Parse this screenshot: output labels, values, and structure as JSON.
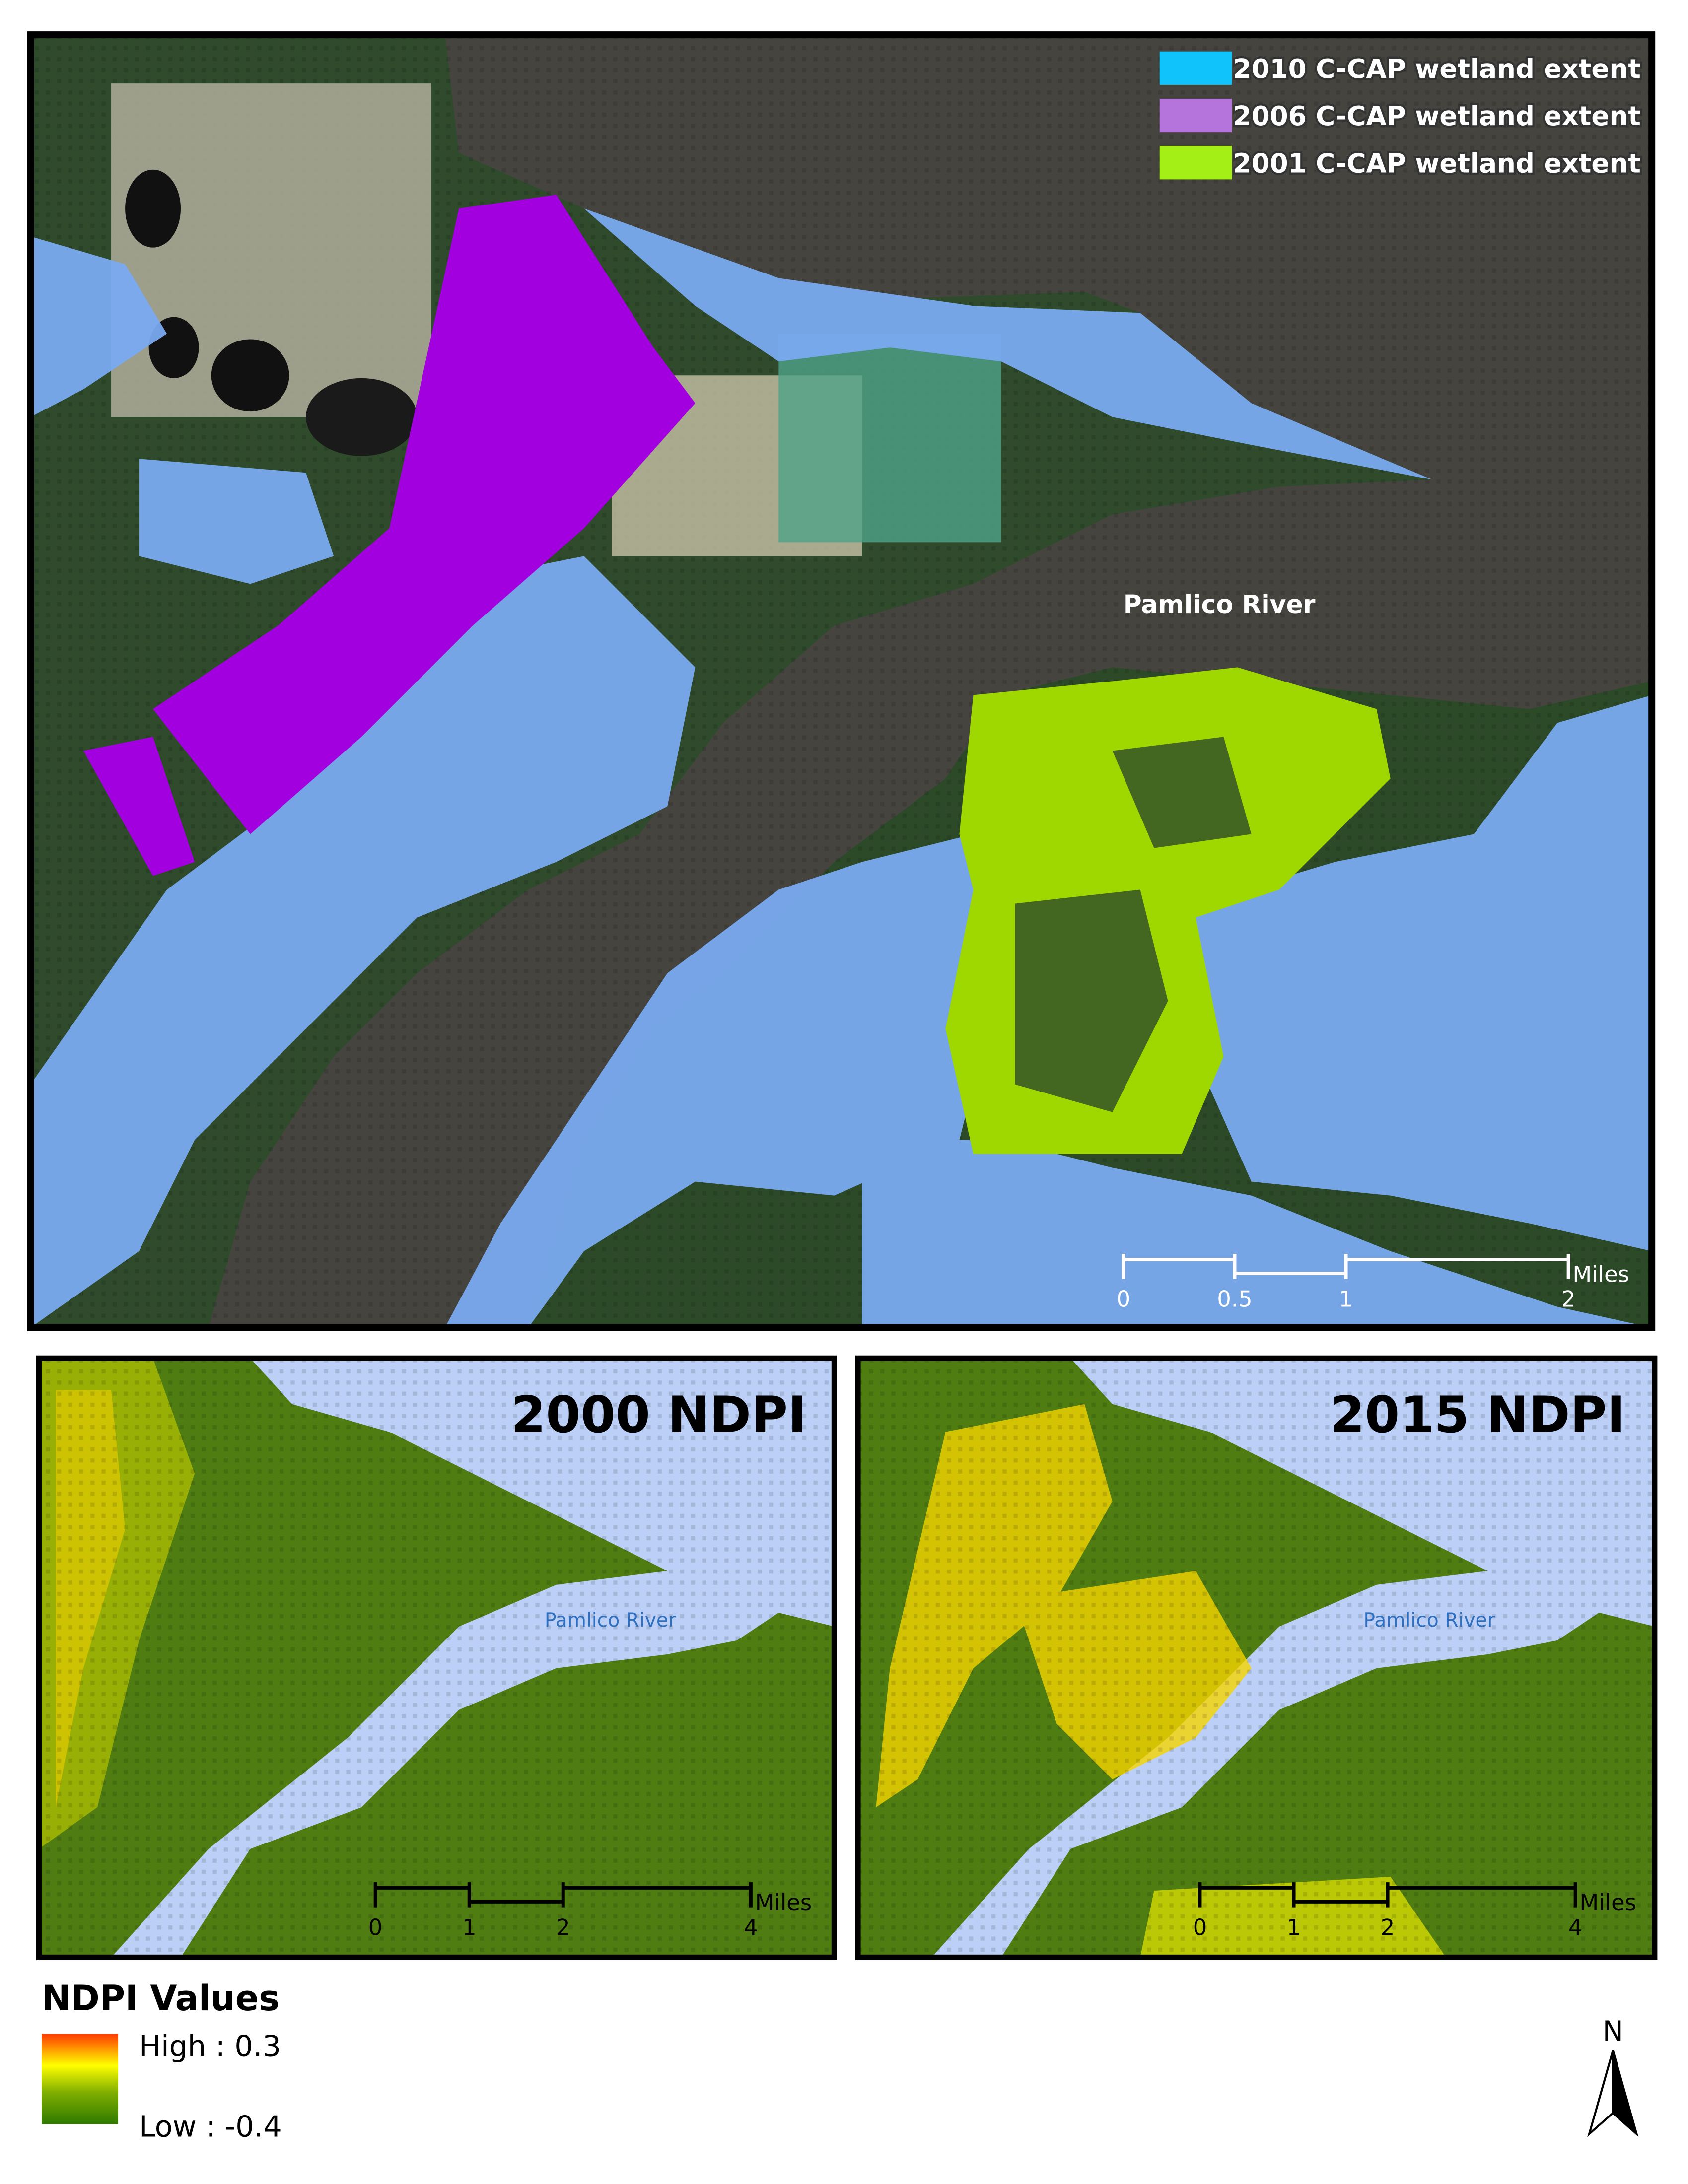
{
  "top_map": {
    "legend": [
      {
        "label": "2010 C-CAP wetland extent",
        "color": "#10c4fb"
      },
      {
        "label": "2006 C-CAP wetland extent",
        "color": "#b574dc"
      },
      {
        "label": "2001 C-CAP wetland extent",
        "color": "#a4f016"
      }
    ],
    "river_label": "Pamlico River",
    "scale_bar": {
      "ticks": [
        0,
        0.5,
        1,
        2
      ],
      "unit": "Miles"
    }
  },
  "panels": [
    {
      "title": "2000 NDPI",
      "river_label": "Pamlico River",
      "scale_bar": {
        "ticks": [
          0,
          1,
          2,
          4
        ],
        "unit": "Miles"
      }
    },
    {
      "title": "2015 NDPI",
      "river_label": "Pamlico River",
      "scale_bar": {
        "ticks": [
          0,
          1,
          2,
          4
        ],
        "unit": "Miles"
      }
    }
  ],
  "ndpi_legend": {
    "title": "NDPI Values",
    "high": "High : 0.3",
    "low": "Low : -0.4"
  },
  "north_arrow": "N"
}
